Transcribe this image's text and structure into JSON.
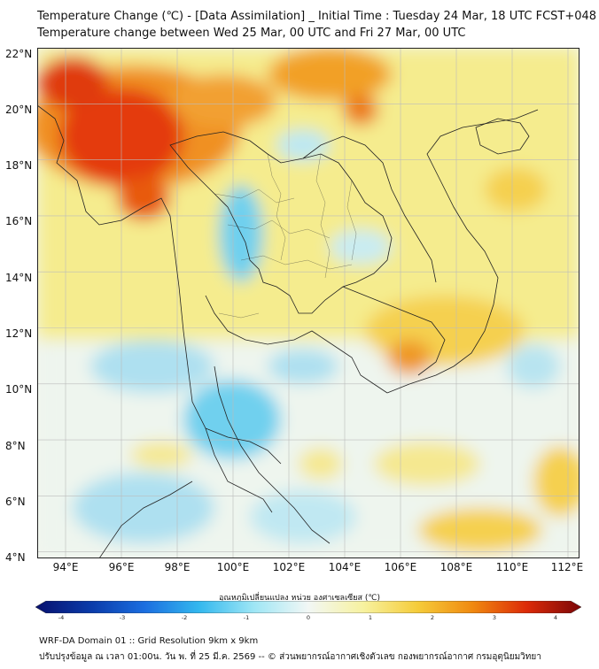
{
  "header": {
    "title_line1": "Temperature Change (℃) - [Data Assimilation] _ Initial Time : Tuesday 24 Mar, 18 UTC FCST+048",
    "title_line2": "Temperature change between Wed 25 Mar, 00 UTC and Fri 27 Mar, 00 UTC"
  },
  "map": {
    "lat_labels": [
      "22°N",
      "20°N",
      "18°N",
      "16°N",
      "14°N",
      "12°N",
      "10°N",
      "8°N",
      "6°N",
      "4°N"
    ],
    "lon_labels": [
      "94°E",
      "96°E",
      "98°E",
      "100°E",
      "102°E",
      "104°E",
      "106°E",
      "108°E",
      "110°E",
      "112°E"
    ],
    "land_color": "#f2ec9a",
    "sea_color": "#e8f3f0",
    "border_color": "#222222",
    "grid_color": "#cccccc"
  },
  "colorbar": {
    "title": "อุณหภูมิเปลี่ยนแปลง หน่วย องศาเซลเซียส (℃)",
    "tick_labels": [
      "-4",
      "-3",
      "-2",
      "-1",
      "0",
      "1",
      "2",
      "3",
      "4"
    ],
    "range": [
      -4,
      4
    ],
    "colors": [
      "#08106e",
      "#0a3aa8",
      "#1b6ee0",
      "#33b8ee",
      "#9ee6f5",
      "#f2f7f5",
      "#f7f2a0",
      "#f5cc3a",
      "#f08a10",
      "#dc2a08",
      "#7a0608"
    ]
  },
  "footer": {
    "line1": "WRF-DA Domain 01 :: Grid Resolution 9km x 9km",
    "line2": "ปรับปรุงข้อมูล ณ เวลา 01:00น. วัน พ. ที่ 25 มี.ค. 2569 -- © ส่วนพยากรณ์อากาศเชิงตัวเลข กองพยากรณ์อากาศ กรมอุตุนิยมวิทยา"
  }
}
